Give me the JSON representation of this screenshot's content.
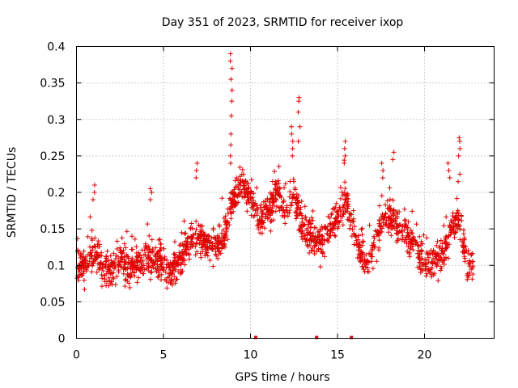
{
  "chart_data": {
    "type": "scatter",
    "title": "Day 351 of 2023, SRMTID for receiver ixop",
    "xlabel": "GPS time / hours",
    "ylabel": "SRMTID / TECUs",
    "xlim": [
      0,
      24
    ],
    "ylim": [
      0,
      0.4
    ],
    "xticks": [
      0,
      5,
      10,
      15,
      20
    ],
    "yticks": [
      0,
      0.05,
      0.1,
      0.15,
      0.2,
      0.25,
      0.3,
      0.35,
      0.4
    ],
    "xtick_labels": [
      "0",
      "5",
      "10",
      "15",
      "20"
    ],
    "ytick_labels": [
      "0",
      "0.05",
      "0.1",
      "0.15",
      "0.2",
      "0.25",
      "0.3",
      "0.35",
      "0.4"
    ],
    "grid": true,
    "marker": "+",
    "color": "#e00000",
    "trend": [
      [
        0.0,
        0.1
      ],
      [
        0.5,
        0.1
      ],
      [
        1.0,
        0.12
      ],
      [
        1.5,
        0.095
      ],
      [
        2.0,
        0.09
      ],
      [
        2.5,
        0.11
      ],
      [
        3.0,
        0.095
      ],
      [
        3.5,
        0.1
      ],
      [
        4.0,
        0.11
      ],
      [
        4.5,
        0.11
      ],
      [
        5.0,
        0.1
      ],
      [
        5.5,
        0.09
      ],
      [
        6.0,
        0.11
      ],
      [
        6.5,
        0.13
      ],
      [
        7.0,
        0.14
      ],
      [
        7.5,
        0.13
      ],
      [
        8.0,
        0.12
      ],
      [
        8.5,
        0.14
      ],
      [
        9.0,
        0.19
      ],
      [
        9.5,
        0.21
      ],
      [
        10.0,
        0.19
      ],
      [
        10.5,
        0.16
      ],
      [
        11.0,
        0.17
      ],
      [
        11.5,
        0.2
      ],
      [
        12.0,
        0.17
      ],
      [
        12.5,
        0.2
      ],
      [
        13.0,
        0.15
      ],
      [
        13.5,
        0.14
      ],
      [
        14.0,
        0.13
      ],
      [
        14.5,
        0.15
      ],
      [
        15.0,
        0.17
      ],
      [
        15.5,
        0.19
      ],
      [
        16.0,
        0.14
      ],
      [
        16.5,
        0.1
      ],
      [
        17.0,
        0.12
      ],
      [
        17.5,
        0.16
      ],
      [
        18.0,
        0.17
      ],
      [
        18.5,
        0.15
      ],
      [
        19.0,
        0.14
      ],
      [
        19.5,
        0.13
      ],
      [
        20.0,
        0.1
      ],
      [
        20.5,
        0.1
      ],
      [
        21.0,
        0.11
      ],
      [
        21.5,
        0.15
      ],
      [
        22.0,
        0.16
      ],
      [
        22.5,
        0.1
      ],
      [
        22.8,
        0.1
      ]
    ],
    "spikes": [
      {
        "x": 8.9,
        "values": [
          0.39,
          0.38,
          0.37,
          0.355,
          0.34,
          0.325,
          0.305,
          0.28,
          0.265,
          0.25,
          0.24
        ]
      },
      {
        "x": 12.8,
        "values": [
          0.33,
          0.325,
          0.31,
          0.29,
          0.27
        ]
      },
      {
        "x": 12.4,
        "values": [
          0.29,
          0.28,
          0.27,
          0.26,
          0.25
        ]
      },
      {
        "x": 15.4,
        "values": [
          0.27,
          0.26,
          0.25,
          0.24
        ]
      },
      {
        "x": 22.0,
        "values": [
          0.275,
          0.27,
          0.26,
          0.25,
          0.225
        ]
      },
      {
        "x": 6.9,
        "values": [
          0.24,
          0.23,
          0.22
        ]
      },
      {
        "x": 1.0,
        "values": [
          0.21,
          0.2,
          0.19
        ]
      },
      {
        "x": 4.3,
        "values": [
          0.205,
          0.2,
          0.19
        ]
      },
      {
        "x": 17.6,
        "values": [
          0.24,
          0.23,
          0.22
        ]
      },
      {
        "x": 18.2,
        "values": [
          0.255,
          0.245
        ]
      },
      {
        "x": 21.4,
        "values": [
          0.24,
          0.23,
          0.22
        ]
      }
    ],
    "outages": [
      10.3,
      13.8,
      15.8
    ],
    "n_points": 1800,
    "jitter": 0.02
  }
}
